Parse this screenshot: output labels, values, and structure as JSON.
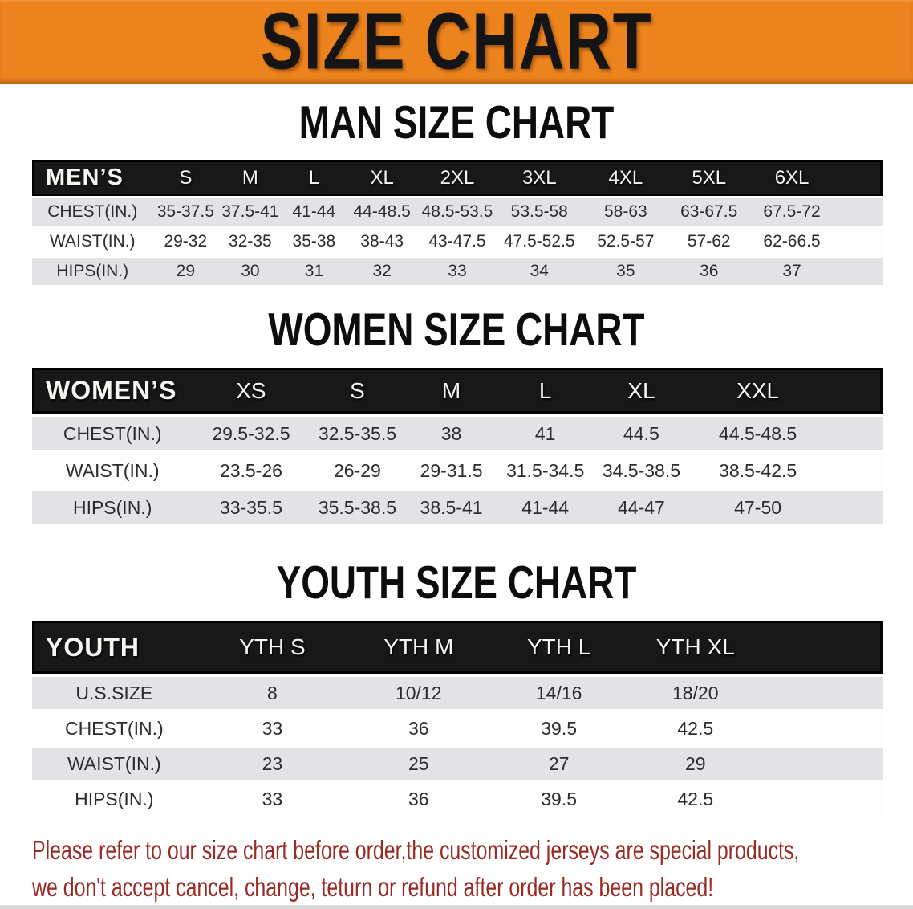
{
  "banner": {
    "title": "SIZE CHART"
  },
  "colors": {
    "banner_bg": "#ED831D",
    "header_bg": "#181818",
    "row_gray": "#E3E3E5",
    "row_white": "#FDFDFE",
    "disclaimer_red": "#992A24"
  },
  "sections": [
    {
      "id": "men",
      "heading": "MAN SIZE CHART",
      "table": {
        "header": [
          "MEN’S",
          "S",
          "M",
          "L",
          "XL",
          "2XL",
          "3XL",
          "4XL",
          "5XL",
          "6XL"
        ],
        "rows": [
          {
            "label": "CHEST(IN.)",
            "values": [
              "35-37.5",
              "37.5-41",
              "41-44",
              "44-48.5",
              "48.5-53.5",
              "53.5-58",
              "58-63",
              "63-67.5",
              "67.5-72"
            ]
          },
          {
            "label": "WAIST(IN.)",
            "values": [
              "29-32",
              "32-35",
              "35-38",
              "38-43",
              "43-47.5",
              "47.5-52.5",
              "52.5-57",
              "57-62",
              "62-66.5"
            ]
          },
          {
            "label": "HIPS(IN.)",
            "values": [
              "29",
              "30",
              "31",
              "32",
              "33",
              "34",
              "35",
              "36",
              "37"
            ]
          }
        ]
      }
    },
    {
      "id": "women",
      "heading": "WOMEN SIZE CHART",
      "table": {
        "header": [
          "WOMEN’S",
          "XS",
          "S",
          "M",
          "L",
          "XL",
          "XXL"
        ],
        "rows": [
          {
            "label": "CHEST(IN.)",
            "values": [
              "29.5-32.5",
              "32.5-35.5",
              "38",
              "41",
              "44.5",
              "44.5-48.5"
            ]
          },
          {
            "label": "WAIST(IN.)",
            "values": [
              "23.5-26",
              "26-29",
              "29-31.5",
              "31.5-34.5",
              "34.5-38.5",
              "38.5-42.5"
            ]
          },
          {
            "label": "HIPS(IN.)",
            "values": [
              "33-35.5",
              "35.5-38.5",
              "38.5-41",
              "41-44",
              "44-47",
              "47-50"
            ]
          }
        ]
      }
    },
    {
      "id": "youth",
      "heading": "YOUTH SIZE CHART",
      "table": {
        "header": [
          "YOUTH",
          "YTH S",
          "YTH M",
          "YTH L",
          "YTH XL"
        ],
        "rows": [
          {
            "label": "U.S.SIZE",
            "values": [
              "8",
              "10/12",
              "14/16",
              "18/20"
            ]
          },
          {
            "label": "CHEST(IN.)",
            "values": [
              "33",
              "36",
              "39.5",
              "42.5"
            ]
          },
          {
            "label": "WAIST(IN.)",
            "values": [
              "23",
              "25",
              "27",
              "29"
            ]
          },
          {
            "label": "HIPS(IN.)",
            "values": [
              "33",
              "36",
              "39.5",
              "42.5"
            ]
          }
        ]
      }
    }
  ],
  "disclaimer": {
    "line1": "Please refer to our size chart before order,the customized jerseys are special products,",
    "line2": "we don't accept cancel, change, teturn or refund after order has been placed!"
  }
}
